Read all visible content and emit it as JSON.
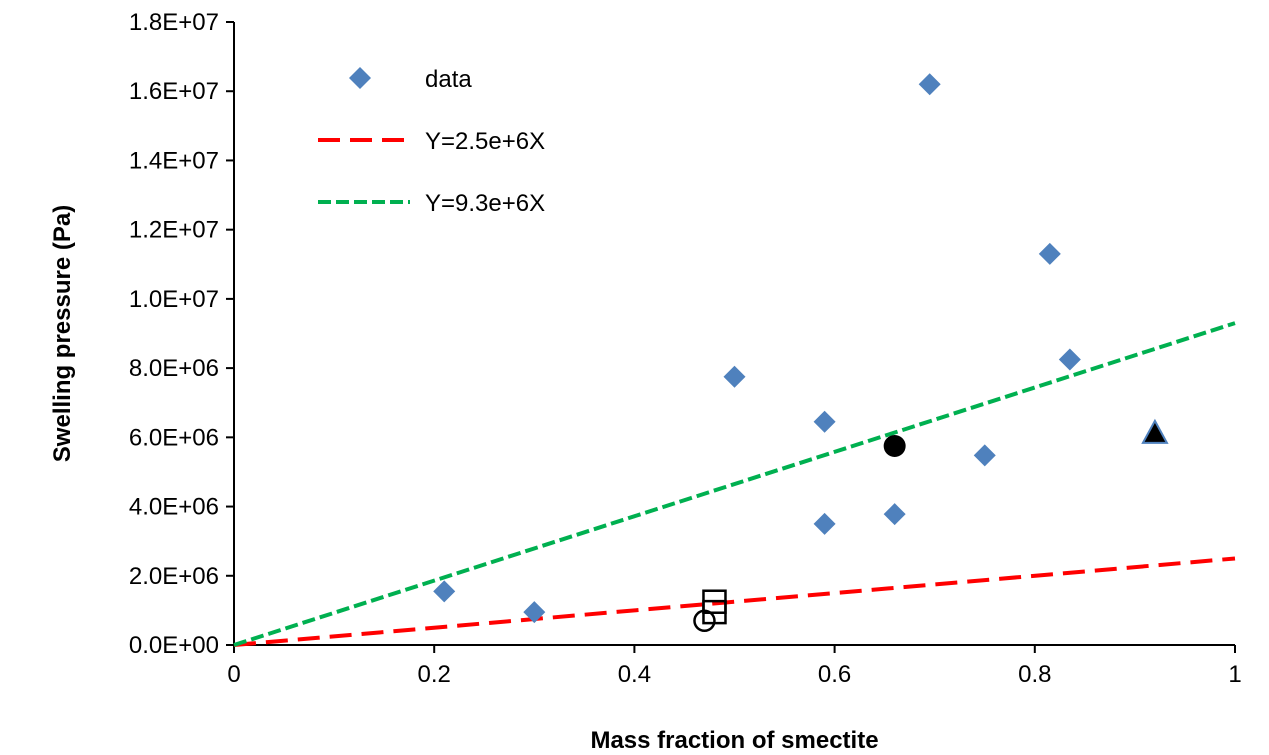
{
  "chart_data": {
    "type": "scatter",
    "title": "",
    "xlabel": "Mass fraction of smectite",
    "ylabel": "Swelling pressure (Pa)",
    "xlim": [
      0,
      1
    ],
    "ylim": [
      0,
      18000000
    ],
    "x_ticks": [
      0,
      0.2,
      0.4,
      0.6,
      0.8,
      1
    ],
    "x_tick_labels": [
      "0",
      "0.2",
      "0.4",
      "0.6",
      "0.8",
      "1"
    ],
    "y_ticks": [
      0,
      2000000,
      4000000,
      6000000,
      8000000,
      10000000,
      12000000,
      14000000,
      16000000,
      18000000
    ],
    "y_tick_labels": [
      "0.0E+00",
      "2.0E+06",
      "4.0E+06",
      "6.0E+06",
      "8.0E+06",
      "1.0E+07",
      "1.2E+07",
      "1.4E+07",
      "1.6E+07",
      "1.8E+07"
    ],
    "grid": false,
    "legend_position": "top-left",
    "colors": {
      "data": "#4f81bd",
      "line1": "#ff0000",
      "line2": "#00b050",
      "axis": "#000000",
      "extra": "#000000"
    },
    "series": [
      {
        "name": "data",
        "kind": "scatter",
        "marker": "diamond",
        "x": [
          0.21,
          0.3,
          0.5,
          0.59,
          0.59,
          0.66,
          0.695,
          0.75,
          0.815,
          0.835
        ],
        "y": [
          1550000,
          950000,
          7750000,
          6450000,
          3500000,
          3780000,
          16200000,
          5480000,
          11300000,
          8250000
        ]
      },
      {
        "name": "Y=2.5e+6X",
        "kind": "line",
        "style": "dashed",
        "slope": 2500000
      },
      {
        "name": "Y=9.3e+6X",
        "kind": "line",
        "style": "dashed",
        "slope": 9300000
      }
    ],
    "extra_points": [
      {
        "id": "open-circle",
        "marker": "open-circle",
        "x": 0.47,
        "y": 700000
      },
      {
        "id": "open-square-a",
        "marker": "open-square",
        "x": 0.48,
        "y": 950000
      },
      {
        "id": "open-square-b",
        "marker": "open-square",
        "x": 0.48,
        "y": 1250000
      },
      {
        "id": "filled-circle",
        "marker": "filled-circle",
        "x": 0.66,
        "y": 5750000
      },
      {
        "id": "filled-triangle",
        "marker": "filled-triangle",
        "x": 0.92,
        "y": 6100000
      }
    ]
  }
}
